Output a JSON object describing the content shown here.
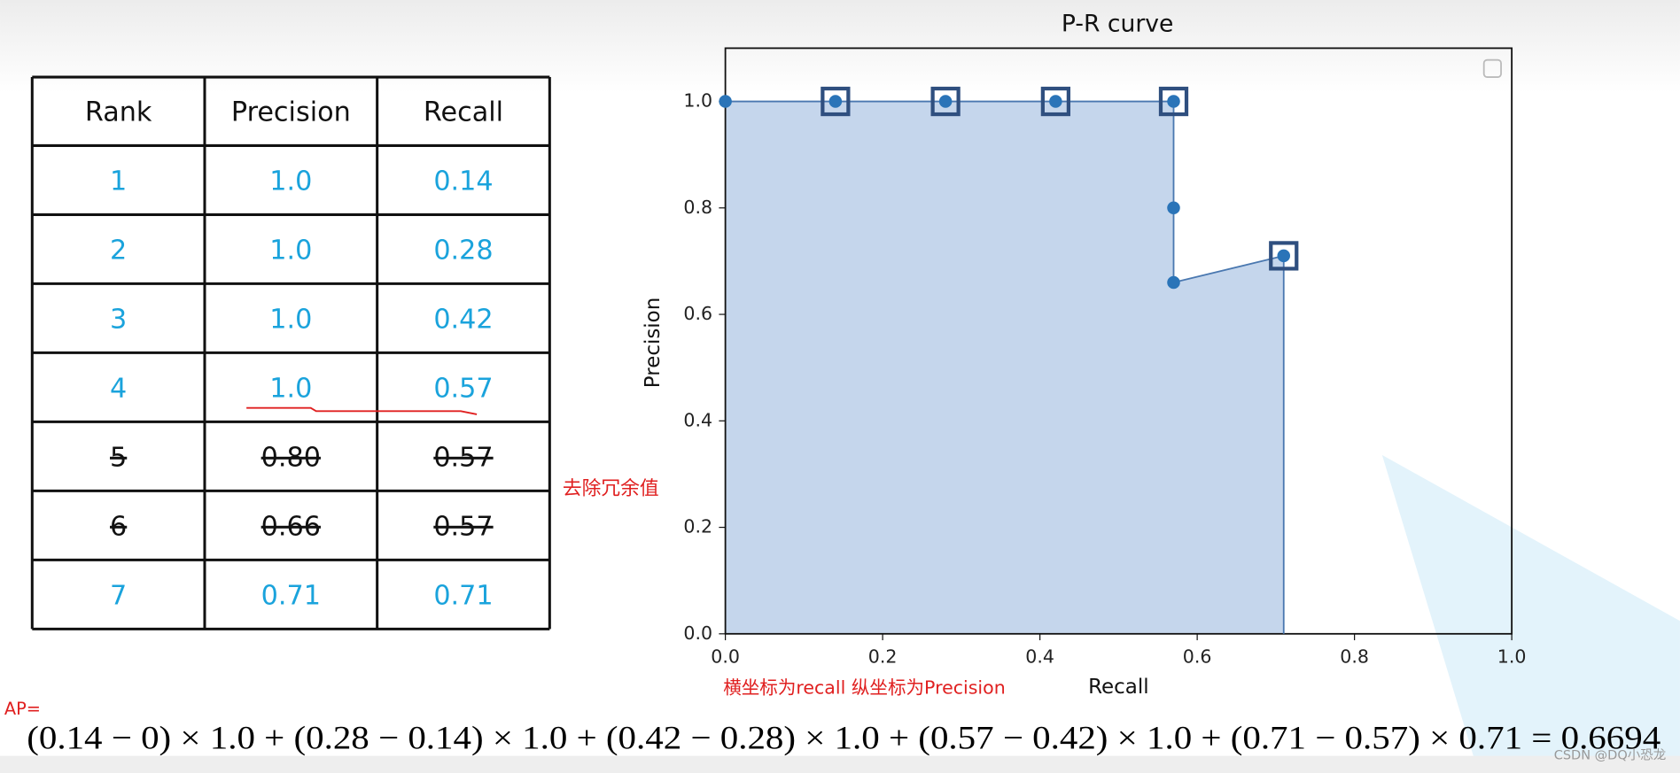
{
  "table": {
    "header": [
      "Rank",
      "Precision",
      "Recall"
    ],
    "rows": [
      [
        "1",
        "1.0",
        "0.14"
      ],
      [
        "2",
        "1.0",
        "0.28"
      ],
      [
        "3",
        "1.0",
        "0.42"
      ],
      [
        "4",
        "1.0",
        "0.57"
      ],
      [
        "5",
        "0.80",
        "0.57"
      ],
      [
        "6",
        "0.66",
        "0.57"
      ],
      [
        "7",
        "0.71",
        "0.71"
      ]
    ]
  },
  "annotations": {
    "redundant_note": "去除冗余值",
    "axis_note": "横坐标为recall 纵坐标为Precision",
    "ap_label": "AP="
  },
  "formula": "(0.14 − 0) × 1.0 + (0.28 − 0.14) × 1.0 + (0.42 − 0.28) × 1.0 + (0.57 − 0.42) × 1.0 + (0.71 − 0.57) × 0.71 = 0.6694",
  "watermark": "CSDN @DQ小恐龙",
  "chart_data": {
    "type": "line",
    "title": "P-R curve",
    "x_label": "Recall",
    "y_label": "Precision",
    "x": [
      0,
      0.14,
      0.28,
      0.42,
      0.57,
      0.57,
      0.57,
      0.71
    ],
    "series": [
      {
        "name": "Precision",
        "color": "#2a74b8",
        "values": [
          1.0,
          1.0,
          1.0,
          1.0,
          1.0,
          0.8,
          0.66,
          0.71
        ]
      }
    ],
    "highlight_points": [
      1,
      2,
      3,
      4,
      7
    ],
    "fill_color": "#c5d6ec",
    "xlim": [
      0,
      1
    ],
    "ylim": [
      0,
      1.1
    ],
    "xticks": [
      {
        "value": 0,
        "label": "0.0"
      },
      0.2,
      0.4,
      0.6,
      0.8,
      {
        "value": 1,
        "label": "1.0"
      }
    ],
    "yticks": [
      {
        "value": 0,
        "label": "0.0"
      },
      0.2,
      0.4,
      0.6,
      0.8,
      {
        "value": 1,
        "label": "1.0"
      }
    ]
  }
}
